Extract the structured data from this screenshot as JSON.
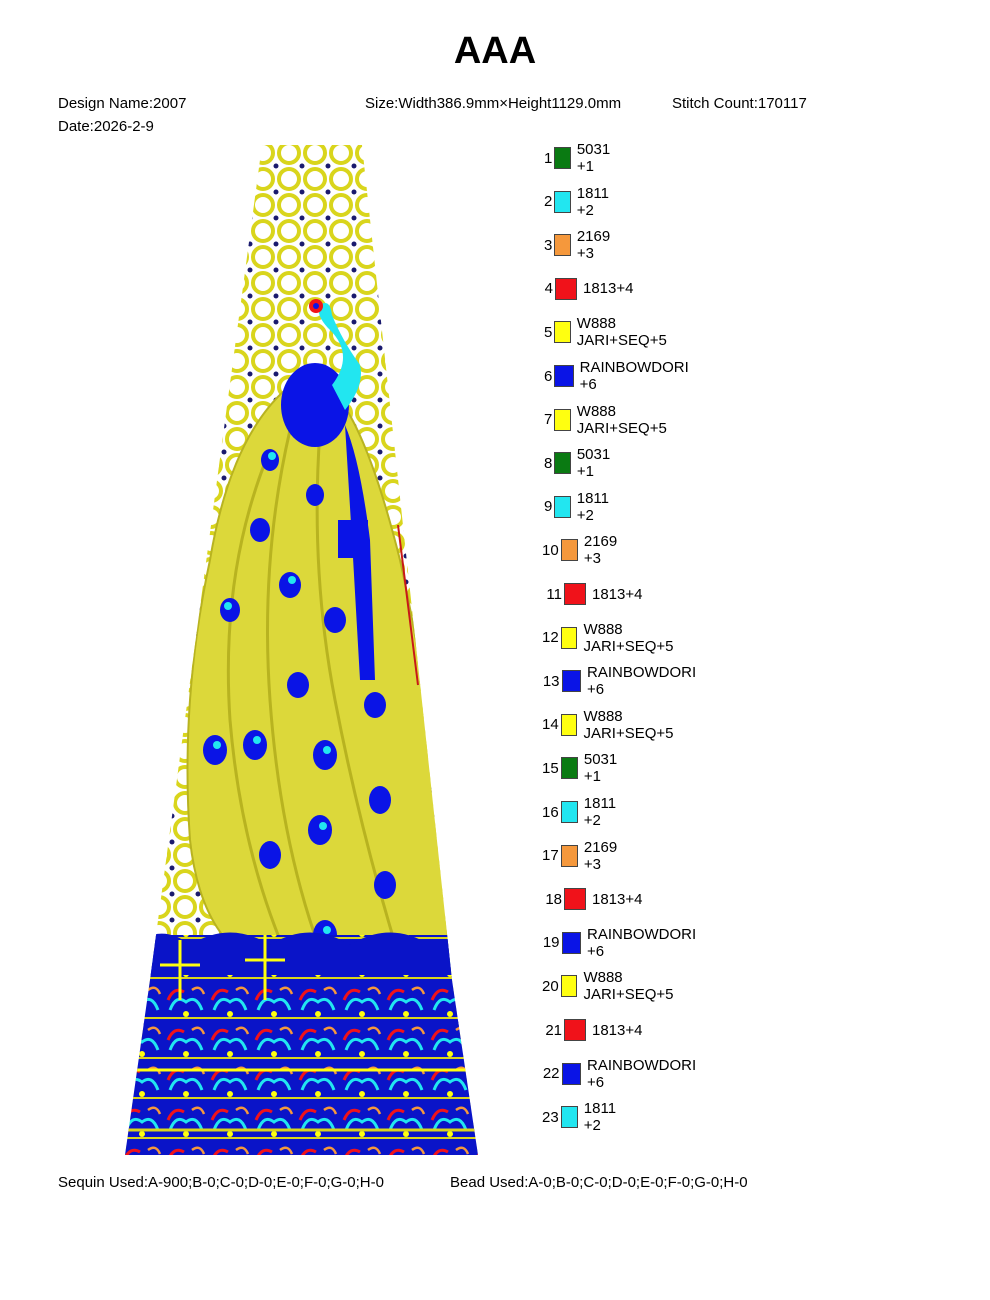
{
  "title": "AAA",
  "design_name": "Design Name:2007",
  "date": "Date:2026-2-9",
  "size": "Size:Width386.9mm×Height1129.0mm",
  "stitch_count": "Stitch Count:170117",
  "colors": {
    "green": "#0a7a12",
    "cyan": "#22e6f0",
    "orange": "#f5983c",
    "red": "#f0121a",
    "yellow": "#ffff10",
    "blue": "#0a14e6"
  },
  "legend": [
    {
      "num": "1",
      "label": "5031 +1",
      "color": "#0a7a12"
    },
    {
      "num": "2",
      "label": "1811 +2",
      "color": "#22e6f0"
    },
    {
      "num": "3",
      "label": "2169 +3",
      "color": "#f5983c"
    },
    {
      "num": "4",
      "label": "1813+4",
      "color": "#f0121a"
    },
    {
      "num": "5",
      "label": "W888 JARI+SEQ+5",
      "color": "#ffff10"
    },
    {
      "num": "6",
      "label": "RAINBOWDORI +6",
      "color": "#0a14e6"
    },
    {
      "num": "7",
      "label": "W888 JARI+SEQ+5",
      "color": "#ffff10"
    },
    {
      "num": "8",
      "label": "5031 +1",
      "color": "#0a7a12"
    },
    {
      "num": "9",
      "label": "1811 +2",
      "color": "#22e6f0"
    },
    {
      "num": "10",
      "label": "2169 +3",
      "color": "#f5983c"
    },
    {
      "num": "11",
      "label": "1813+4",
      "color": "#f0121a"
    },
    {
      "num": "12",
      "label": "W888 JARI+SEQ+5",
      "color": "#ffff10"
    },
    {
      "num": "13",
      "label": "RAINBOWDORI +6",
      "color": "#0a14e6"
    },
    {
      "num": "14",
      "label": "W888 JARI+SEQ+5",
      "color": "#ffff10"
    },
    {
      "num": "15",
      "label": "5031 +1",
      "color": "#0a7a12"
    },
    {
      "num": "16",
      "label": "1811 +2",
      "color": "#22e6f0"
    },
    {
      "num": "17",
      "label": "2169 +3",
      "color": "#f5983c"
    },
    {
      "num": "18",
      "label": "1813+4",
      "color": "#f0121a"
    },
    {
      "num": "19",
      "label": "RAINBOWDORI +6",
      "color": "#0a14e6"
    },
    {
      "num": "20",
      "label": "W888 JARI+SEQ+5",
      "color": "#ffff10"
    },
    {
      "num": "21",
      "label": "1813+4",
      "color": "#f0121a"
    },
    {
      "num": "22",
      "label": "RAINBOWDORI +6",
      "color": "#0a14e6"
    },
    {
      "num": "23",
      "label": "1811 +2",
      "color": "#22e6f0"
    }
  ],
  "sequin_used": "Sequin Used:A-900;B-0;C-0;D-0;E-0;F-0;G-0;H-0",
  "bead_used": "Bead Used:A-0;B-0;C-0;D-0;E-0;F-0;G-0;H-0"
}
